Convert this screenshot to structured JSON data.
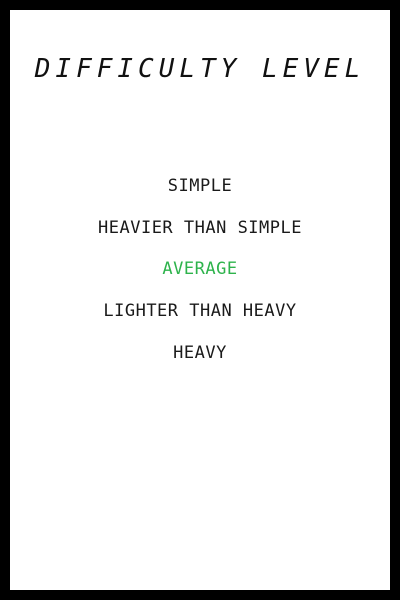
{
  "screen": {
    "title": "DIFFICULTY LEVEL"
  },
  "difficulty": {
    "selected_index": 2,
    "selected_color": "#2eb34c",
    "options": [
      {
        "label": "SIMPLE"
      },
      {
        "label": "HEAVIER THAN SIMPLE"
      },
      {
        "label": "AVERAGE"
      },
      {
        "label": "LIGHTER THAN HEAVY"
      },
      {
        "label": "HEAVY"
      }
    ]
  }
}
